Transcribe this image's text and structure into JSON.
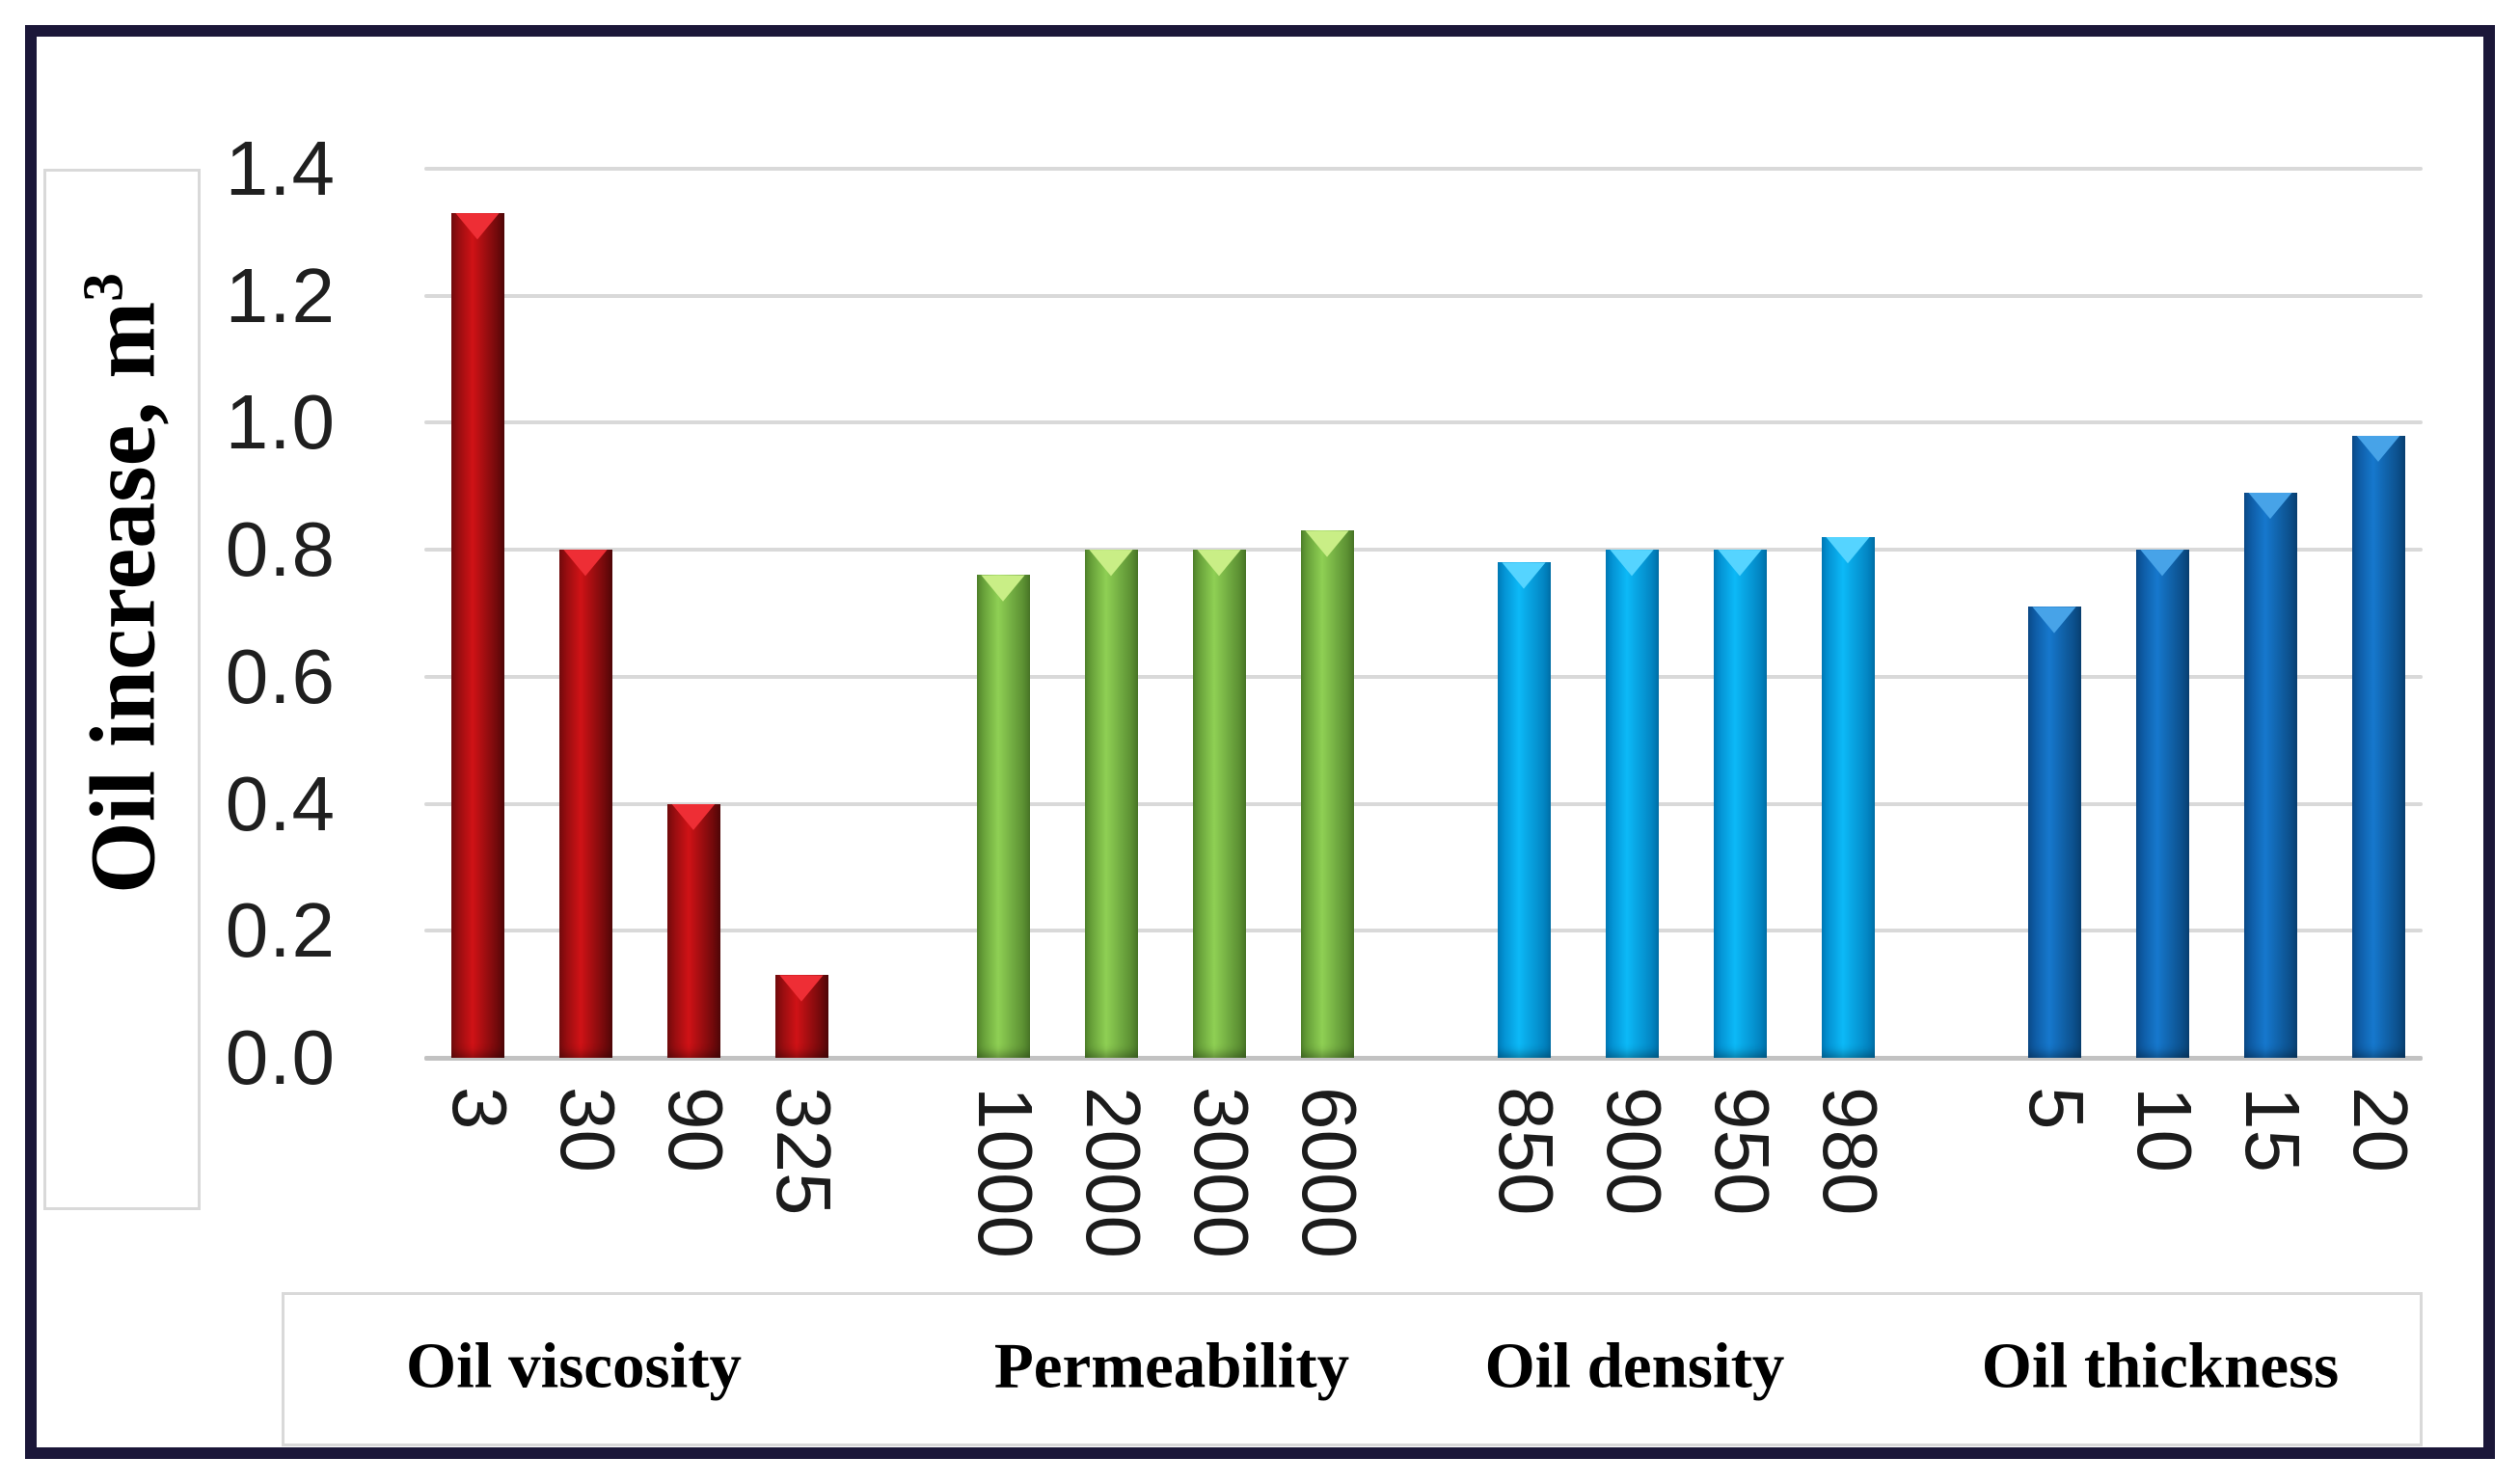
{
  "figure": {
    "border_color": "#1b1739",
    "background": "#ffffff",
    "grid_color": "#d9d9d9"
  },
  "chart_data": {
    "type": "bar",
    "title": "",
    "xlabel": "",
    "ylabel": "Oil increase, m³",
    "ylabel_prefix": "Oil increase, m",
    "ylabel_sup": "3",
    "ylim": [
      0,
      1.4
    ],
    "ytick_step": 0.2,
    "ytick_labels": [
      "1.4",
      "1.2",
      "1.0",
      "0.8",
      "0.6",
      "0.4",
      "0.2",
      "0.0"
    ],
    "grid": true,
    "legend": false,
    "groups": [
      {
        "name": "Oil viscosity",
        "categories": [
          "3",
          "30",
          "90",
          "325"
        ],
        "values": [
          1.33,
          0.8,
          0.4,
          0.13
        ],
        "color": "#c00d10",
        "gradient": {
          "edge_left": "#7a0b0d",
          "mid": "#d01216",
          "edge_right": "#550708",
          "highlight": "#ee2e35"
        }
      },
      {
        "name": "Permeability",
        "categories": [
          "1000",
          "2000",
          "3000",
          "6000"
        ],
        "values": [
          0.76,
          0.8,
          0.8,
          0.83
        ],
        "color": "#79be41",
        "gradient": {
          "edge_left": "#568c2e",
          "mid": "#8fd054",
          "edge_right": "#4e7f2a",
          "highlight": "#c9ee86"
        }
      },
      {
        "name": "Oil density",
        "categories": [
          "850",
          "900",
          "950",
          "980"
        ],
        "values": [
          0.78,
          0.8,
          0.8,
          0.82
        ],
        "color": "#00b0f0",
        "gradient": {
          "edge_left": "#0082c4",
          "mid": "#0cb9f7",
          "edge_right": "#0077b4",
          "highlight": "#55d4ff"
        }
      },
      {
        "name": "Oil thickness",
        "categories": [
          "5",
          "10",
          "15",
          "20"
        ],
        "values": [
          0.71,
          0.8,
          0.89,
          0.98
        ],
        "color": "#1172c2",
        "gradient": {
          "edge_left": "#0b4f92",
          "mid": "#1678cd",
          "edge_right": "#094479",
          "highlight": "#47a3e8"
        }
      }
    ]
  }
}
